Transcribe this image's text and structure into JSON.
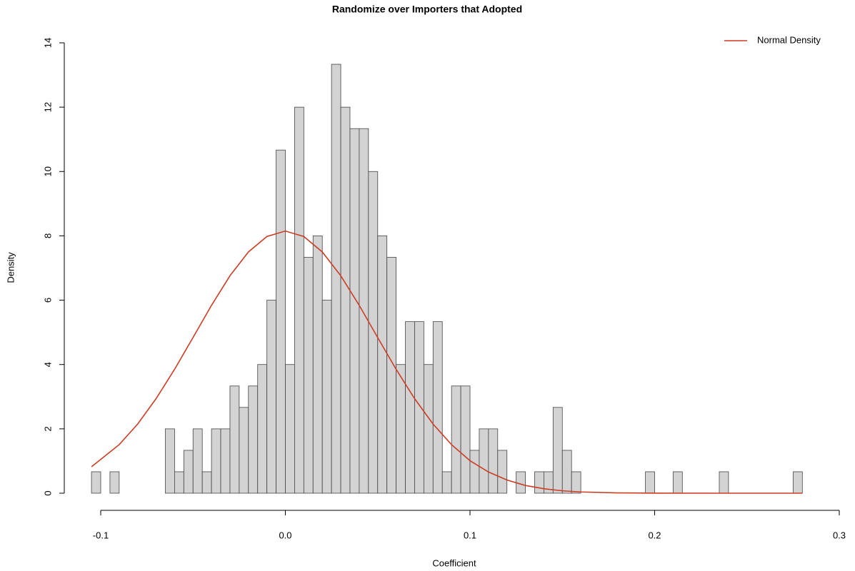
{
  "chart_data": {
    "type": "histogram",
    "title": "Randomize over Importers that Adopted",
    "x_label": "Coefficient",
    "y_label": "Density",
    "bins": [
      -0.105,
      -0.1,
      -0.095,
      -0.09,
      -0.085,
      -0.08,
      -0.075,
      -0.07,
      -0.065,
      -0.06,
      -0.055,
      -0.05,
      -0.045,
      -0.04,
      -0.035,
      -0.03,
      -0.025,
      -0.02,
      -0.015,
      -0.01,
      -0.005,
      0.0,
      0.005,
      0.01,
      0.015,
      0.02,
      0.025,
      0.03,
      0.035,
      0.04,
      0.045,
      0.05,
      0.055,
      0.06,
      0.065,
      0.07,
      0.075,
      0.08,
      0.085,
      0.09,
      0.095,
      0.1,
      0.105,
      0.11,
      0.115,
      0.12,
      0.125,
      0.13,
      0.135,
      0.14,
      0.145,
      0.15,
      0.155,
      0.16,
      0.165,
      0.17,
      0.175,
      0.18,
      0.185,
      0.19,
      0.195,
      0.2,
      0.205,
      0.21,
      0.215,
      0.22,
      0.225,
      0.23,
      0.235,
      0.24,
      0.245,
      0.25,
      0.255,
      0.26,
      0.265,
      0.27,
      0.275,
      0.28
    ],
    "values": [
      0.667,
      0,
      0.667,
      0,
      0,
      0,
      0,
      0,
      2,
      0.667,
      1.333,
      2,
      0.667,
      2,
      2,
      3.333,
      2.667,
      3.333,
      4,
      6,
      10.667,
      4,
      12,
      7.333,
      8,
      6,
      13.333,
      12,
      11.333,
      11.333,
      10,
      8,
      7.333,
      4,
      5.333,
      5.333,
      4,
      5.333,
      0.667,
      3.333,
      3.333,
      1.333,
      2,
      2,
      1.333,
      0,
      0.667,
      0,
      0.667,
      0.667,
      2.667,
      1.333,
      0.667,
      0,
      0,
      0,
      0,
      0,
      0,
      0,
      0.667,
      0,
      0,
      0.667,
      0,
      0,
      0,
      0,
      0.667,
      0,
      0,
      0,
      0,
      0,
      0,
      0,
      0.667
    ],
    "color": "#d3d3d3",
    "lines": [
      {
        "name": "Normal Density",
        "color": "#cc3d24",
        "x": [
          -0.105,
          -0.09,
          -0.08,
          -0.07,
          -0.06,
          -0.05,
          -0.04,
          -0.03,
          -0.02,
          -0.01,
          0,
          0.01,
          0.02,
          0.03,
          0.04,
          0.05,
          0.06,
          0.07,
          0.08,
          0.09,
          0.1,
          0.11,
          0.12,
          0.13,
          0.14,
          0.15,
          0.16,
          0.18,
          0.2,
          0.24,
          0.28
        ],
        "y": [
          0.82,
          1.51,
          2.15,
          2.94,
          3.85,
          4.84,
          5.84,
          6.76,
          7.5,
          7.98,
          8.15,
          7.98,
          7.5,
          6.76,
          5.84,
          4.84,
          3.85,
          2.94,
          2.15,
          1.51,
          1.01,
          0.66,
          0.41,
          0.24,
          0.14,
          0.075,
          0.039,
          0.0095,
          0.002,
          0,
          0
        ]
      }
    ],
    "xlim": [
      -0.1,
      0.3
    ],
    "xticks": [
      -0.1,
      {
        "value": 0,
        "label": "0.0"
      },
      0.1,
      0.2,
      0.3
    ],
    "ylim": [
      0,
      14
    ],
    "yticks": [
      0,
      2,
      4,
      6,
      8,
      10,
      12,
      14
    ],
    "legend": "topright"
  }
}
